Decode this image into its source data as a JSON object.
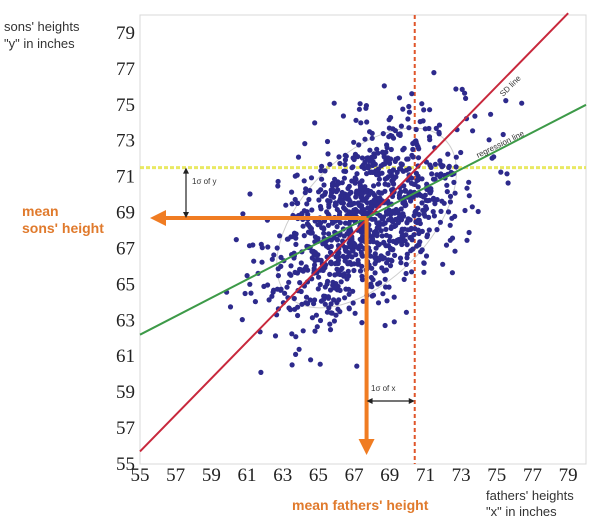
{
  "chart_data": {
    "type": "scatter",
    "title": "",
    "ylabel_lines": [
      "sons' heights",
      "\"y\" in inches"
    ],
    "xlabel_lines": [
      "fathers' heights",
      "\"x\" in inches"
    ],
    "xlim": [
      55,
      80
    ],
    "ylim": [
      55,
      80
    ],
    "x_ticks": [
      "55",
      "57",
      "59",
      "61",
      "63",
      "65",
      "67",
      "69",
      "71",
      "73",
      "75",
      "77",
      "79"
    ],
    "y_ticks": [
      "55",
      "57",
      "59",
      "61",
      "63",
      "65",
      "67",
      "69",
      "71",
      "73",
      "75",
      "77",
      "79"
    ],
    "grid": false,
    "mean_x": 67.7,
    "mean_y": 68.7,
    "sd_x": 2.7,
    "sd_y": 2.8,
    "correlation": 0.5,
    "n_points": 1078,
    "lines": [
      {
        "name": "SD line",
        "x": [
          55,
          79
        ],
        "y": [
          55.7,
          80.1
        ],
        "color": "#c8283c"
      },
      {
        "name": "regression line",
        "x": [
          55,
          80
        ],
        "y": [
          62.2,
          75.0
        ],
        "color": "#3d9a48"
      }
    ],
    "reference_lines": {
      "horizontal_y": 71.5,
      "horizontal_color": "#e6e64a",
      "vertical_x": 70.4,
      "vertical_color": "#e0552a"
    },
    "annotations": {
      "mean_sons": [
        "mean",
        "sons' height"
      ],
      "mean_fathers": "mean fathers' height",
      "sigma_y": "1σ of y",
      "sigma_x": "1σ of x",
      "sd_line_label": "SD line",
      "regression_line_label": "regression line"
    },
    "colors": {
      "points": "#2d2a8c",
      "arrows": "#f07c22",
      "ellipse": "#b8b8b8",
      "mean_label": "#e07a2c"
    }
  }
}
